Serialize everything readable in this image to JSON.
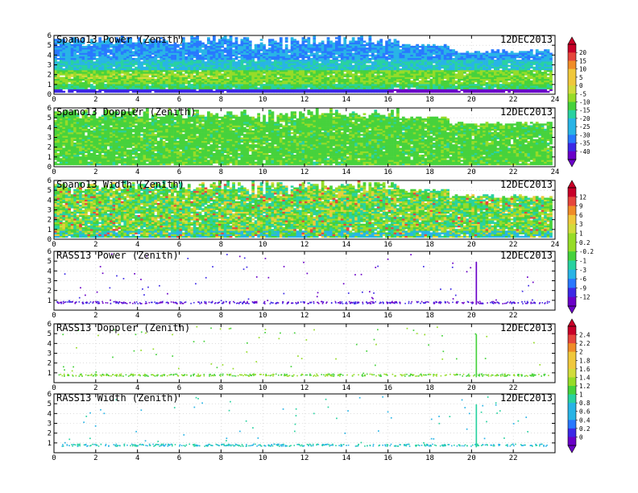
{
  "chart_data": [
    {
      "type": "heatmap",
      "title": "Spano13 Power (Zenith)",
      "date": "12DEC2013",
      "x_ticks": [
        "0",
        "2",
        "4",
        "6",
        "8",
        "10",
        "12",
        "14",
        "16",
        "18",
        "20",
        "22",
        "24"
      ],
      "xlim": [
        0,
        24
      ],
      "y_ticks": [
        "0",
        "1",
        "2",
        "3",
        "4",
        "5",
        "6"
      ],
      "ylim": [
        0,
        6
      ],
      "colorbar": 0
    },
    {
      "type": "heatmap",
      "title": "Spano13 Doppler (Zenith)",
      "date": "12DEC2013",
      "x_ticks": [
        "0",
        "2",
        "4",
        "6",
        "8",
        "10",
        "12",
        "14",
        "16",
        "18",
        "20",
        "22",
        "24"
      ],
      "xlim": [
        0,
        24
      ],
      "y_ticks": [
        "0",
        "1",
        "2",
        "3",
        "4",
        "5",
        "6"
      ],
      "ylim": [
        0,
        6
      ],
      "colorbar": null
    },
    {
      "type": "heatmap",
      "title": "Spano13 Width (Zenith)",
      "date": "12DEC2013",
      "x_ticks": [
        "0",
        "2",
        "4",
        "6",
        "8",
        "10",
        "12",
        "14",
        "16",
        "18",
        "20",
        "22",
        "24"
      ],
      "xlim": [
        0,
        24
      ],
      "y_ticks": [
        "0",
        "1",
        "2",
        "3",
        "4",
        "5",
        "6"
      ],
      "ylim": [
        0,
        6
      ],
      "colorbar": 1
    },
    {
      "type": "scatter",
      "title": "RASS13 Power (Zenith)",
      "date": "12DEC2013",
      "x_ticks": [
        "0",
        "2",
        "4",
        "6",
        "8",
        "10",
        "12",
        "14",
        "16",
        "18",
        "20",
        "22"
      ],
      "xlim": [
        0,
        24
      ],
      "y_ticks": [
        "1",
        "2",
        "3",
        "4",
        "5",
        "6"
      ],
      "ylim": [
        0,
        6
      ],
      "colorbar": null
    },
    {
      "type": "scatter",
      "title": "RASS13 Doppler (Zenith)",
      "date": "12DEC2013",
      "x_ticks": [
        "0",
        "2",
        "4",
        "6",
        "8",
        "10",
        "12",
        "14",
        "16",
        "18",
        "20",
        "22"
      ],
      "xlim": [
        0,
        24
      ],
      "y_ticks": [
        "1",
        "2",
        "3",
        "4",
        "5",
        "6"
      ],
      "ylim": [
        0,
        6
      ],
      "colorbar": 2
    },
    {
      "type": "scatter",
      "title": "RASS13 Width (Zenith)",
      "date": "12DEC2013",
      "x_ticks": [
        "0",
        "2",
        "4",
        "6",
        "8",
        "10",
        "12",
        "14",
        "16",
        "18",
        "20",
        "22"
      ],
      "xlim": [
        0,
        24
      ],
      "y_ticks": [
        "1",
        "2",
        "3",
        "4",
        "5",
        "6"
      ],
      "ylim": [
        0,
        6
      ],
      "colorbar": null
    }
  ],
  "colorbars": [
    {
      "labels": [
        "20",
        "15",
        "10",
        "5",
        "0",
        "-5",
        "-10",
        "-15",
        "-20",
        "-25",
        "-30",
        "-35",
        "-40"
      ]
    },
    {
      "labels": [
        "12",
        "9",
        "6",
        "3",
        "1",
        "0.2",
        "-0.2",
        "-1",
        "-3",
        "-6",
        "-9",
        "-12"
      ]
    },
    {
      "labels": [
        "2.4",
        "2.2",
        "2",
        "1.8",
        "1.6",
        "1.4",
        "1.2",
        "1",
        "0.8",
        "0.6",
        "0.4",
        "0.2",
        "0"
      ]
    }
  ],
  "palette": [
    "#6a00c8",
    "#3c28e6",
    "#2878ff",
    "#28b4e6",
    "#28d2a0",
    "#46d23c",
    "#96dc28",
    "#d2dc3c",
    "#f0c83c",
    "#f08c28",
    "#e6463c",
    "#c80028"
  ]
}
